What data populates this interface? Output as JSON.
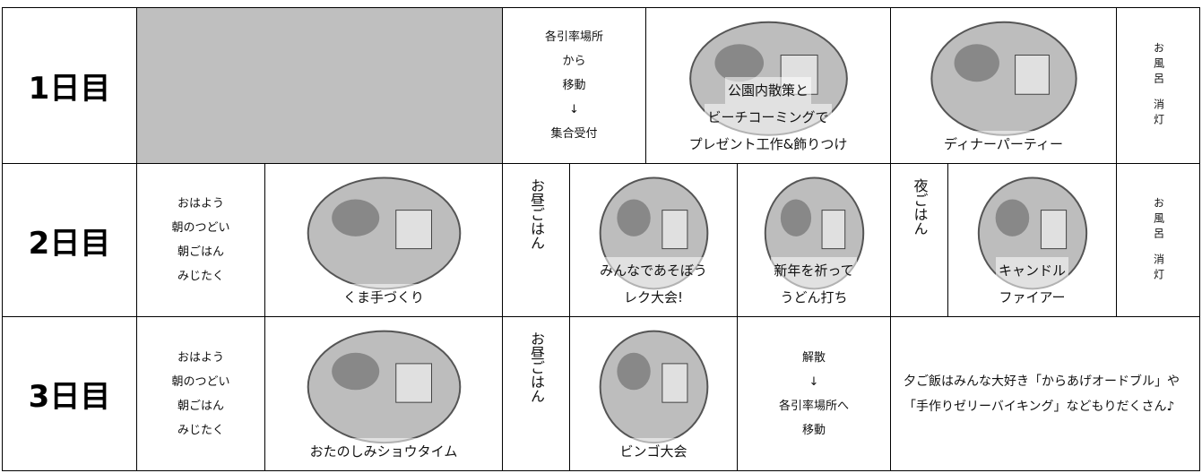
{
  "rows": [
    {
      "day": "1日目",
      "cells": [
        {
          "lines": []
        },
        {
          "lines": [
            "各引率場所",
            "から",
            "移動",
            "↓",
            "集合受付"
          ]
        },
        {
          "lines": [
            "公園内散策と",
            "ビーチコーミングで",
            "プレゼント工作&飾りつけ"
          ]
        },
        {
          "lines": [
            "ディナーパーティー"
          ]
        },
        {
          "lines": [
            "お風呂",
            "消灯"
          ]
        }
      ]
    },
    {
      "day": "2日目",
      "cells": [
        {
          "lines": [
            "おはよう",
            "朝のつどい",
            "朝ごはん",
            "みじたく"
          ]
        },
        {
          "lines": [
            "くま手づくり"
          ]
        },
        {
          "lines": [
            "お昼ごはん"
          ]
        },
        {
          "lines": [
            "みんなであそぼう",
            "レク大会!"
          ]
        },
        {
          "lines": [
            "新年を祈って",
            "うどん打ち"
          ]
        },
        {
          "lines": [
            "夜ごはん"
          ]
        },
        {
          "lines": [
            "キャンドル",
            "ファイアー"
          ]
        },
        {
          "lines": [
            "お風呂",
            "消灯"
          ]
        }
      ]
    },
    {
      "day": "3日目",
      "cells": [
        {
          "lines": [
            "おはよう",
            "朝のつどい",
            "朝ごはん",
            "みじたく"
          ]
        },
        {
          "lines": [
            "おたのしみショウタイム"
          ]
        },
        {
          "lines": [
            "お昼ごはん"
          ]
        },
        {
          "lines": [
            "ビンゴ大会"
          ]
        },
        {
          "lines": [
            "解散",
            "↓",
            "各引率場所へ",
            "移動"
          ]
        },
        {
          "lines": [
            "夕ご飯はみんな大好き「からあげオードブル」や「手作りゼリーバイキング」などもりだくさん♪"
          ]
        }
      ]
    }
  ]
}
